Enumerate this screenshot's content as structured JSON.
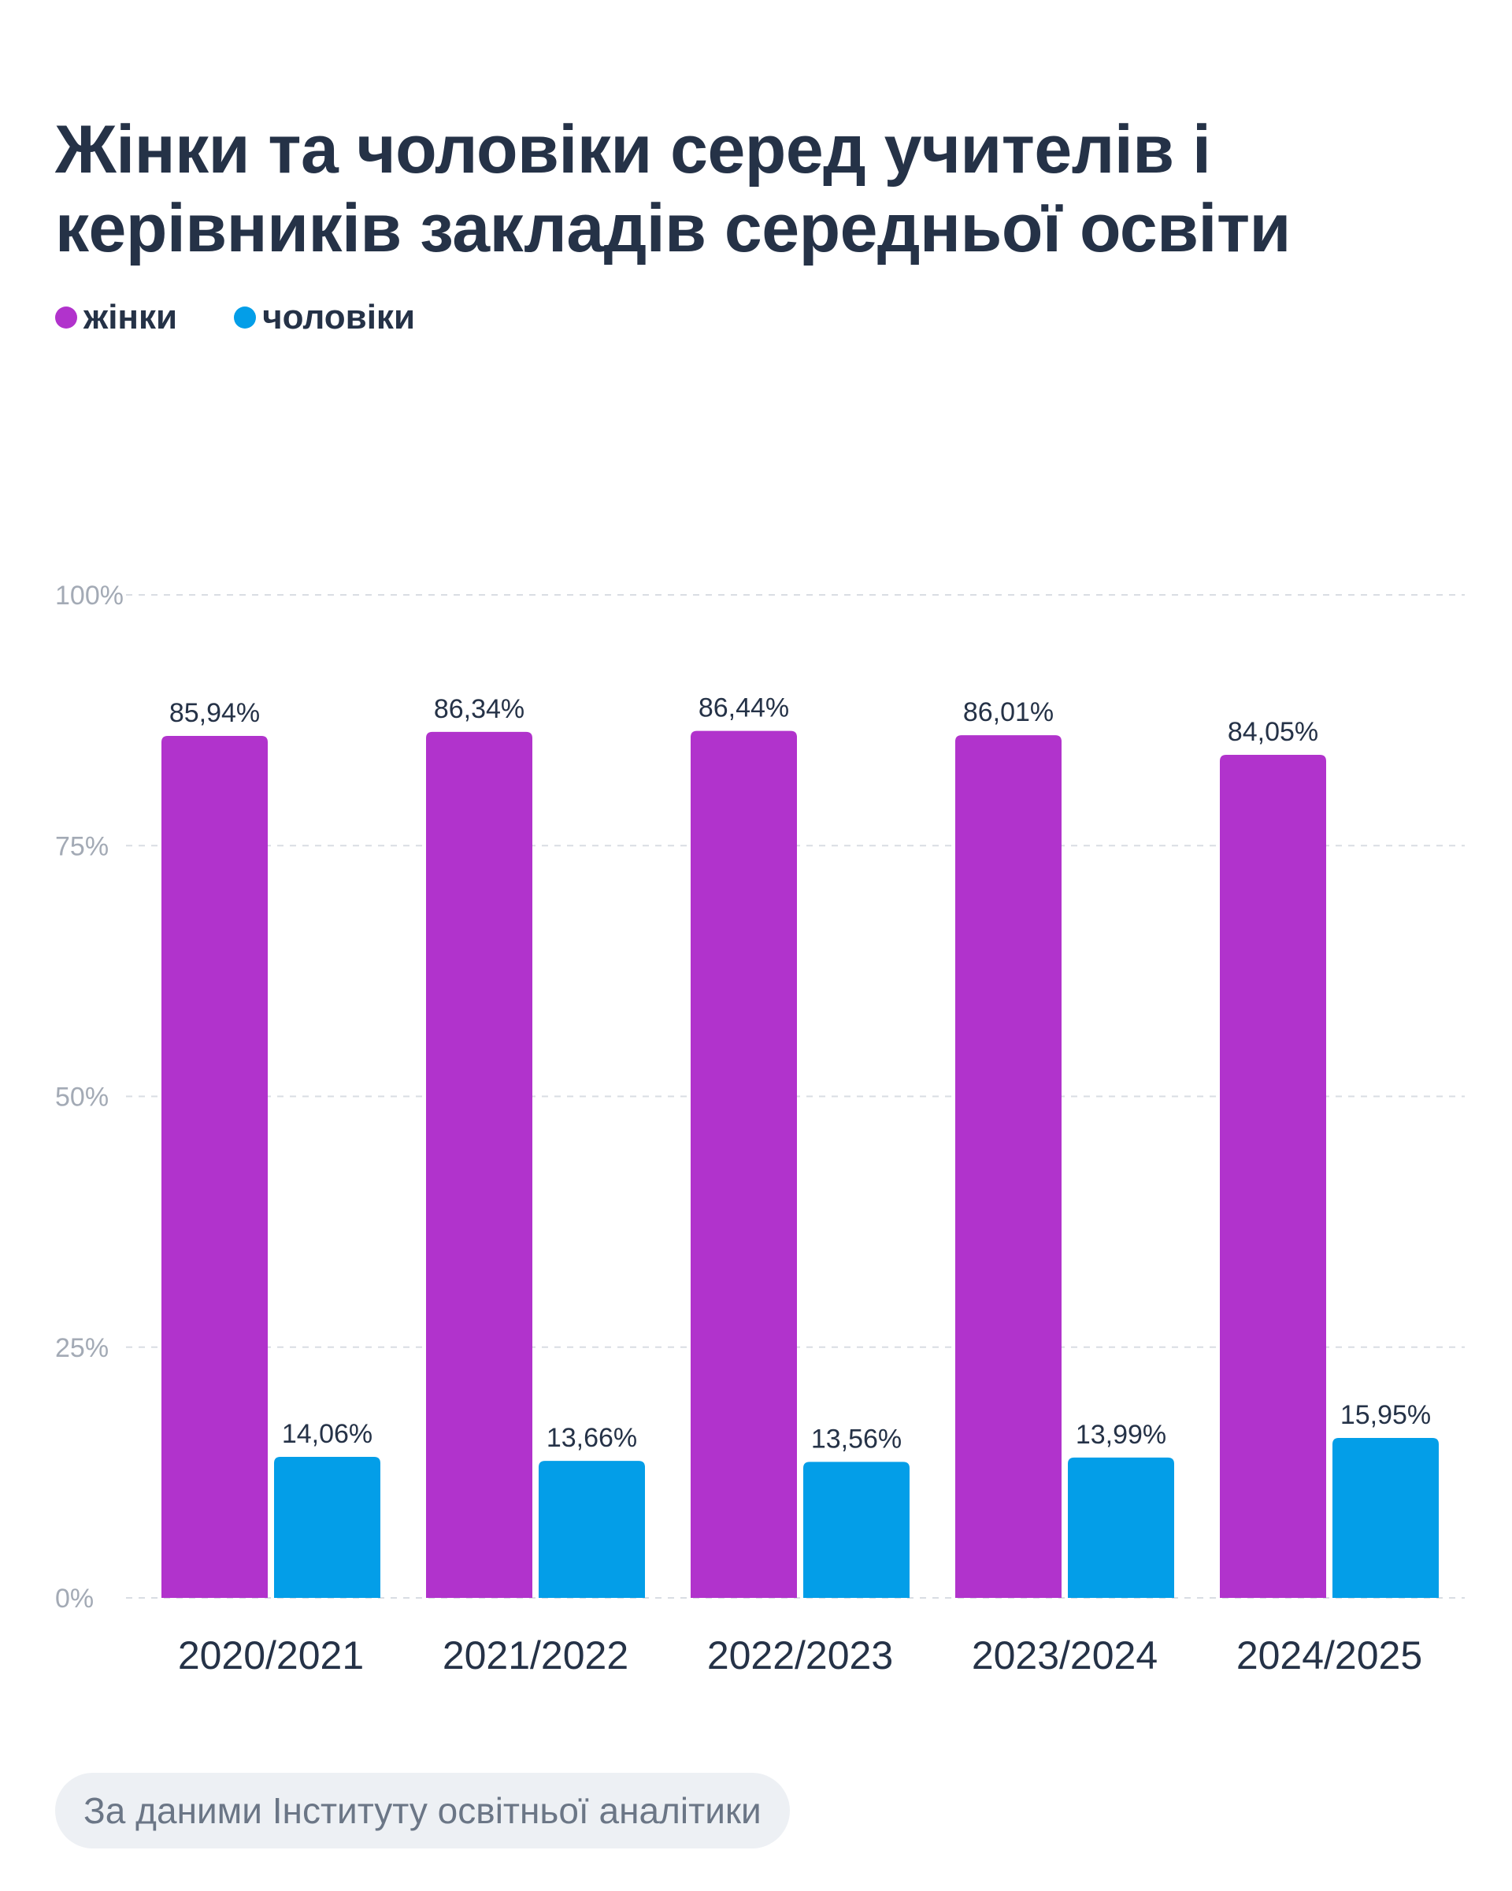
{
  "title_line1": "Жінки та чоловіки серед учителів і",
  "title_line2": "керівників закладів середньої освіти",
  "legend": [
    {
      "label": "жінки",
      "color": "#b133cc"
    },
    {
      "label": "чоловіки",
      "color": "#039ee8"
    }
  ],
  "source": "За даними Інституту освітньої аналітики",
  "chart_data": {
    "type": "bar",
    "title": "Жінки та чоловіки серед учителів і керівників закладів середньої освіти",
    "categories": [
      "2020/2021",
      "2021/2022",
      "2022/2023",
      "2023/2024",
      "2024/2025"
    ],
    "series": [
      {
        "name": "жінки",
        "color": "#b133cc",
        "values": [
          85.94,
          86.34,
          86.44,
          86.01,
          84.05
        ],
        "labels": [
          "85,94%",
          "86,34%",
          "86,44%",
          "86,01%",
          "84,05%"
        ]
      },
      {
        "name": "чоловіки",
        "color": "#039ee8",
        "values": [
          14.06,
          13.66,
          13.56,
          13.99,
          15.95
        ],
        "labels": [
          "14,06%",
          "13,66%",
          "13,56%",
          "13,99%",
          "15,95%"
        ]
      }
    ],
    "yticks": [
      0,
      25,
      50,
      75,
      100
    ],
    "ytick_labels": [
      "0%",
      "25%",
      "50%",
      "75%",
      "100%"
    ],
    "ylim": [
      0,
      100
    ],
    "grid": true,
    "legend_position": "top-left"
  }
}
